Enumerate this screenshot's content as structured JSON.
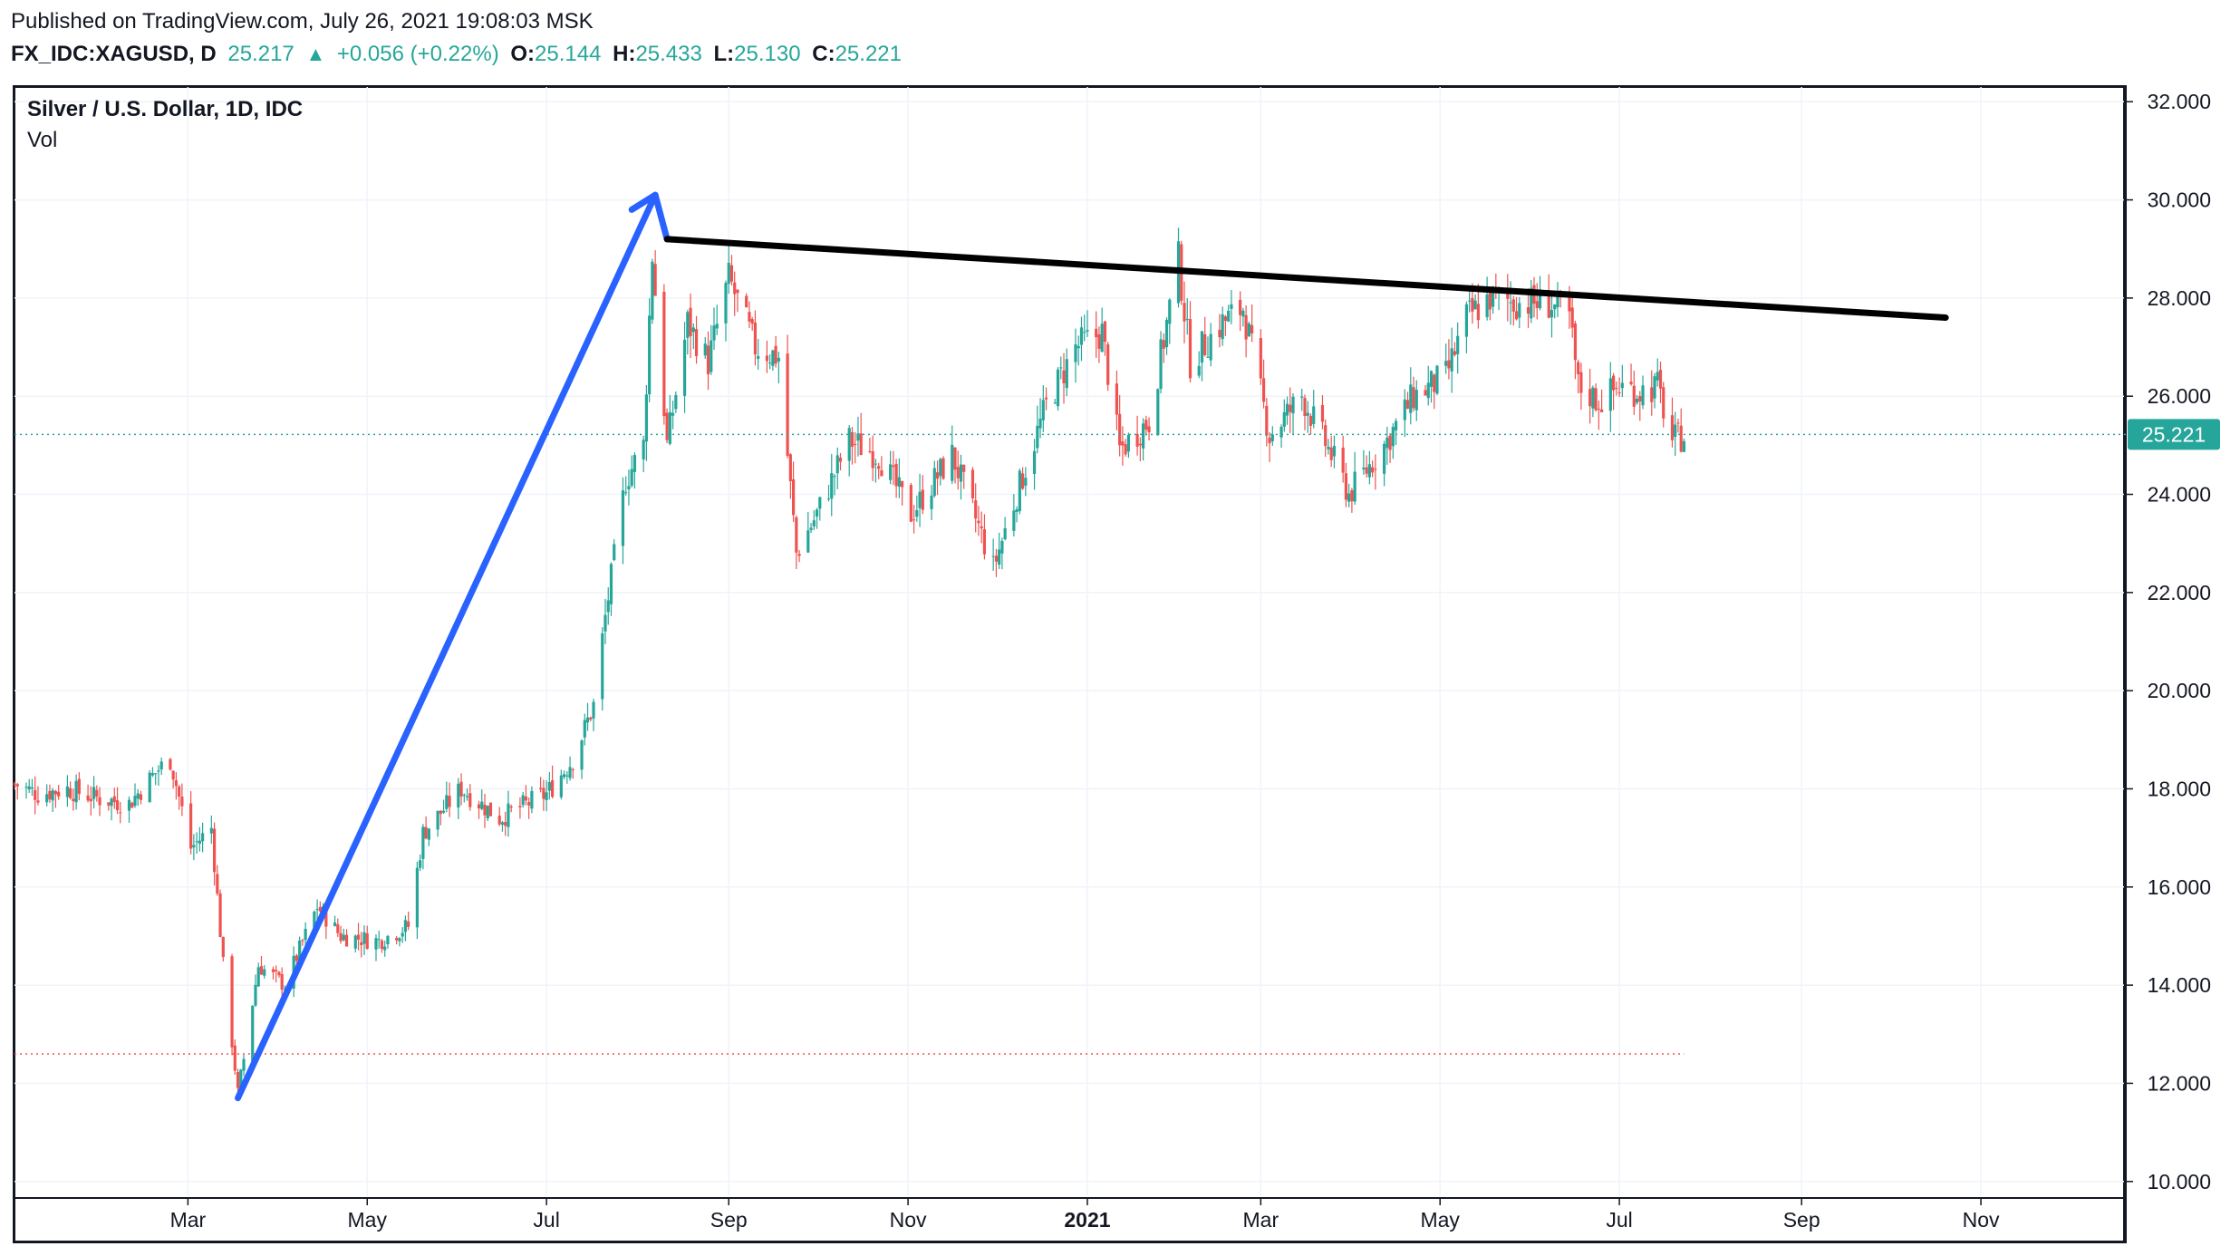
{
  "header": {
    "published": "Published on TradingView.com, July 26, 2021 19:08:03 MSK",
    "symbol": "FX_IDC:XAGUSD, D",
    "price": "25.217",
    "up_icon": "triangle-up-icon",
    "change": "+0.056 (+0.22%)",
    "o_label": "O:",
    "o_value": "25.144",
    "h_label": "H:",
    "h_value": "25.433",
    "l_label": "L:",
    "l_value": "25.130",
    "c_label": "C:",
    "c_value": "25.221"
  },
  "legend": {
    "title": "Silver / U.S. Dollar, 1D, IDC",
    "volume": "Vol"
  },
  "colors": {
    "up": "#26a69a",
    "down": "#ef5350",
    "arrow": "#2962ff",
    "trendline": "#000000",
    "grid": "#f0f3fa"
  },
  "chart_data": {
    "type": "candlestick",
    "symbol": "XAGUSD",
    "current_price": 25.221,
    "price_label": "25.221",
    "ylim": [
      9.7,
      32.3
    ],
    "y_ticks": [
      10,
      12,
      14,
      16,
      18,
      20,
      22,
      24,
      26,
      28,
      30,
      32
    ],
    "y_tick_labels": [
      "10.000",
      "12.000",
      "14.000",
      "16.000",
      "18.000",
      "20.000",
      "22.000",
      "24.000",
      "26.000",
      "28.000",
      "30.000",
      "32.000"
    ],
    "x_range": [
      "2020-01-02",
      "2021-12-20"
    ],
    "x_ticks": [
      {
        "date": "2020-03-01",
        "label": "Mar",
        "bold": false
      },
      {
        "date": "2020-05-01",
        "label": "May",
        "bold": false
      },
      {
        "date": "2020-07-01",
        "label": "Jul",
        "bold": false
      },
      {
        "date": "2020-09-01",
        "label": "Sep",
        "bold": false
      },
      {
        "date": "2020-11-01",
        "label": "Nov",
        "bold": false
      },
      {
        "date": "2021-01-01",
        "label": "2021",
        "bold": true
      },
      {
        "date": "2021-03-01",
        "label": "Mar",
        "bold": false
      },
      {
        "date": "2021-05-01",
        "label": "May",
        "bold": false
      },
      {
        "date": "2021-07-01",
        "label": "Jul",
        "bold": false
      },
      {
        "date": "2021-09-01",
        "label": "Sep",
        "bold": false
      },
      {
        "date": "2021-11-01",
        "label": "Nov",
        "bold": false
      }
    ],
    "closes": [
      {
        "date": "2020-01-02",
        "close": 18.1
      },
      {
        "date": "2020-01-10",
        "close": 17.9
      },
      {
        "date": "2020-01-20",
        "close": 18.0
      },
      {
        "date": "2020-01-31",
        "close": 17.8
      },
      {
        "date": "2020-02-10",
        "close": 17.7
      },
      {
        "date": "2020-02-20",
        "close": 18.4
      },
      {
        "date": "2020-02-24",
        "close": 18.6
      },
      {
        "date": "2020-03-02",
        "close": 16.8
      },
      {
        "date": "2020-03-09",
        "close": 17.2
      },
      {
        "date": "2020-03-13",
        "close": 14.4
      },
      {
        "date": "2020-03-18",
        "close": 11.8
      },
      {
        "date": "2020-03-20",
        "close": 12.5
      },
      {
        "date": "2020-03-25",
        "close": 14.4
      },
      {
        "date": "2020-04-03",
        "close": 14.0
      },
      {
        "date": "2020-04-14",
        "close": 15.6
      },
      {
        "date": "2020-04-22",
        "close": 15.0
      },
      {
        "date": "2020-05-05",
        "close": 14.9
      },
      {
        "date": "2020-05-15",
        "close": 15.2
      },
      {
        "date": "2020-05-20",
        "close": 17.1
      },
      {
        "date": "2020-06-02",
        "close": 18.0
      },
      {
        "date": "2020-06-15",
        "close": 17.4
      },
      {
        "date": "2020-07-01",
        "close": 17.9
      },
      {
        "date": "2020-07-10",
        "close": 18.6
      },
      {
        "date": "2020-07-17",
        "close": 19.7
      },
      {
        "date": "2020-07-21",
        "close": 21.5
      },
      {
        "date": "2020-07-24",
        "close": 22.7
      },
      {
        "date": "2020-07-28",
        "close": 24.3
      },
      {
        "date": "2020-08-03",
        "close": 25.0
      },
      {
        "date": "2020-08-06",
        "close": 28.9
      },
      {
        "date": "2020-08-11",
        "close": 25.0
      },
      {
        "date": "2020-08-18",
        "close": 27.5
      },
      {
        "date": "2020-08-25",
        "close": 26.7
      },
      {
        "date": "2020-09-01",
        "close": 28.4
      },
      {
        "date": "2020-09-10",
        "close": 27.0
      },
      {
        "date": "2020-09-18",
        "close": 26.8
      },
      {
        "date": "2020-09-24",
        "close": 22.8
      },
      {
        "date": "2020-10-01",
        "close": 23.6
      },
      {
        "date": "2020-10-12",
        "close": 25.1
      },
      {
        "date": "2020-10-22",
        "close": 24.8
      },
      {
        "date": "2020-11-02",
        "close": 23.6
      },
      {
        "date": "2020-11-09",
        "close": 24.2
      },
      {
        "date": "2020-11-16",
        "close": 24.8
      },
      {
        "date": "2020-11-24",
        "close": 23.5
      },
      {
        "date": "2020-11-30",
        "close": 22.5
      },
      {
        "date": "2020-12-08",
        "close": 24.0
      },
      {
        "date": "2020-12-18",
        "close": 25.8
      },
      {
        "date": "2020-12-28",
        "close": 27.0
      },
      {
        "date": "2021-01-06",
        "close": 27.3
      },
      {
        "date": "2021-01-12",
        "close": 24.9
      },
      {
        "date": "2021-01-22",
        "close": 25.5
      },
      {
        "date": "2021-02-01",
        "close": 28.8
      },
      {
        "date": "2021-02-05",
        "close": 26.7
      },
      {
        "date": "2021-02-16",
        "close": 27.5
      },
      {
        "date": "2021-02-23",
        "close": 27.8
      },
      {
        "date": "2021-03-04",
        "close": 25.2
      },
      {
        "date": "2021-03-15",
        "close": 26.0
      },
      {
        "date": "2021-03-25",
        "close": 24.8
      },
      {
        "date": "2021-03-31",
        "close": 24.0
      },
      {
        "date": "2021-04-12",
        "close": 25.0
      },
      {
        "date": "2021-04-22",
        "close": 26.0
      },
      {
        "date": "2021-05-03",
        "close": 26.4
      },
      {
        "date": "2021-05-10",
        "close": 27.6
      },
      {
        "date": "2021-05-18",
        "close": 28.0
      },
      {
        "date": "2021-05-28",
        "close": 27.9
      },
      {
        "date": "2021-06-07",
        "close": 27.9
      },
      {
        "date": "2021-06-14",
        "close": 27.6
      },
      {
        "date": "2021-06-17",
        "close": 26.2
      },
      {
        "date": "2021-06-24",
        "close": 25.9
      },
      {
        "date": "2021-07-01",
        "close": 26.2
      },
      {
        "date": "2021-07-08",
        "close": 26.1
      },
      {
        "date": "2021-07-14",
        "close": 26.2
      },
      {
        "date": "2021-07-19",
        "close": 25.1
      },
      {
        "date": "2021-07-23",
        "close": 25.2
      }
    ],
    "annotations": {
      "arrow_points": [
        {
          "date": "2020-03-18",
          "price": 11.7
        },
        {
          "date": "2020-08-07",
          "price": 30.1
        }
      ],
      "arrow_head": [
        {
          "date": "2020-07-30",
          "price": 29.8
        },
        {
          "date": "2020-08-07",
          "price": 30.1
        },
        {
          "date": "2020-08-11",
          "price": 29.2
        }
      ],
      "trendline": [
        {
          "date": "2020-08-11",
          "price": 29.2
        },
        {
          "date": "2021-10-20",
          "price": 27.6
        }
      ],
      "low_line": {
        "price": 12.6,
        "from": "2020-01-02",
        "to": "2021-07-23"
      },
      "price_line": 25.221
    }
  }
}
